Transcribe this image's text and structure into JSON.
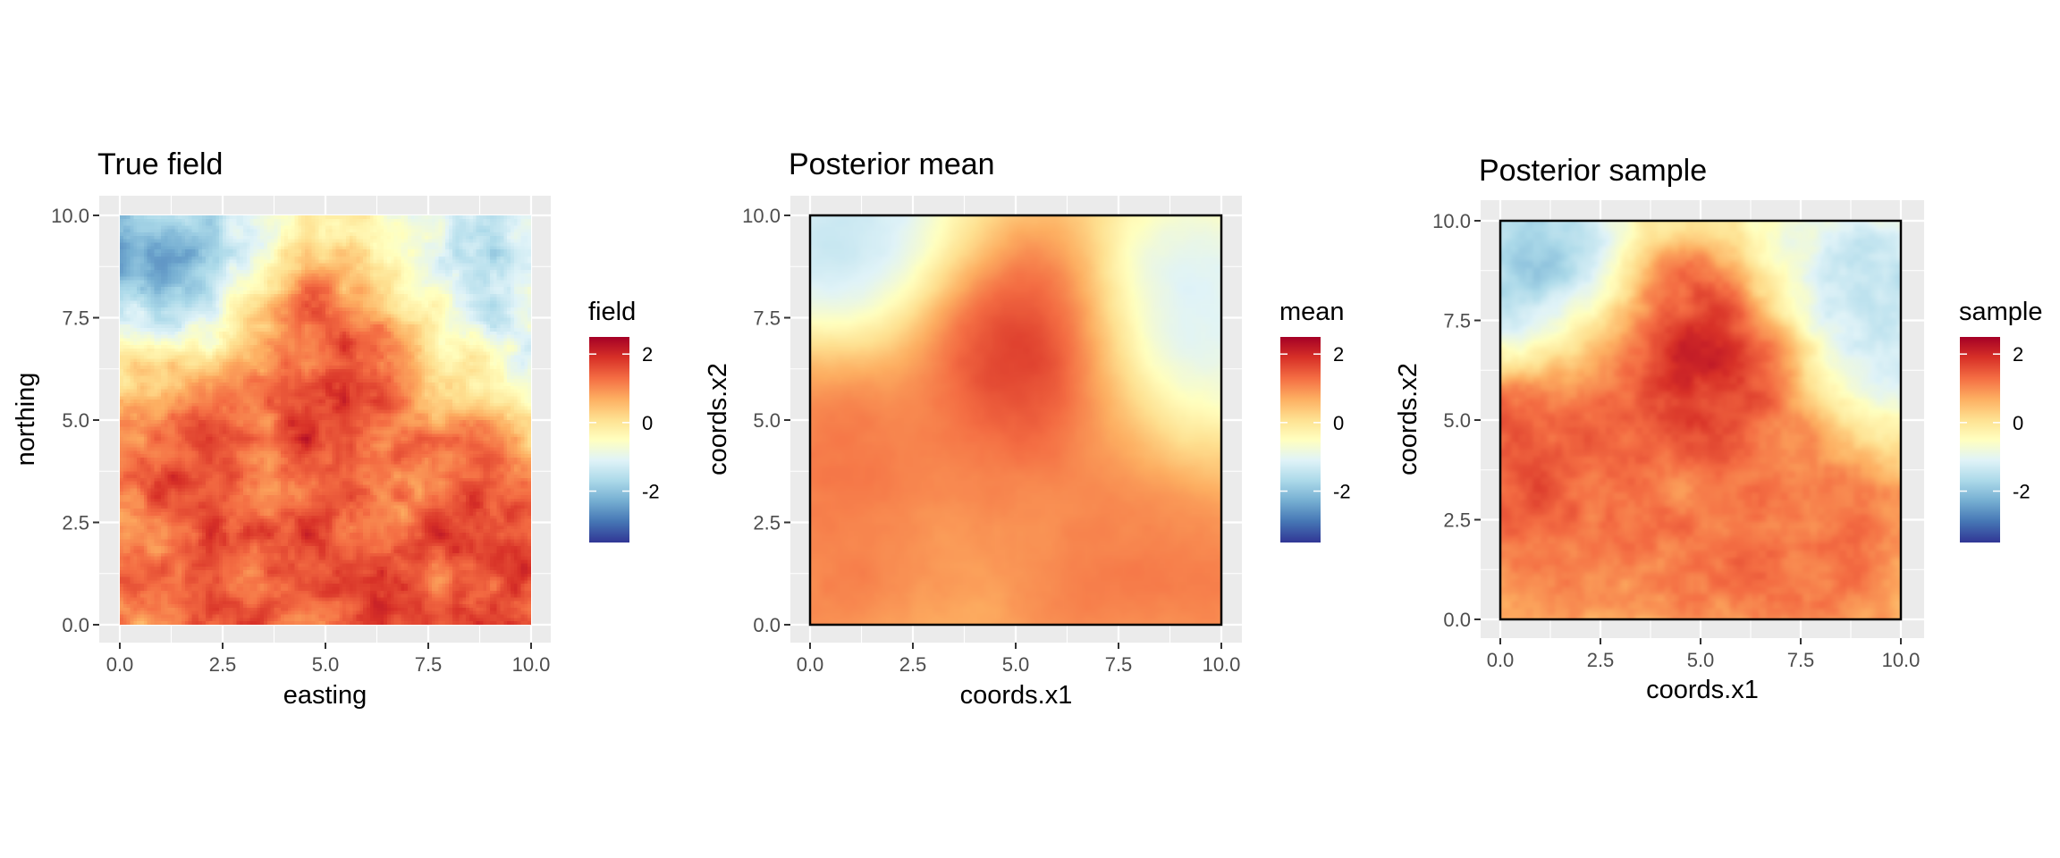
{
  "palette": [
    "#313695",
    "#4575b4",
    "#74add1",
    "#abd9e9",
    "#e0f3f8",
    "#ffffbf",
    "#fee090",
    "#fdae61",
    "#f46d43",
    "#d73027",
    "#a50026"
  ],
  "chart_data": [
    {
      "type": "heatmap",
      "title": "True field",
      "xlabel": "easting",
      "ylabel": "northing",
      "xlim": [
        0,
        10
      ],
      "ylim": [
        0,
        10
      ],
      "xticks": [
        "0.0",
        "2.5",
        "5.0",
        "7.5",
        "10.0"
      ],
      "yticks": [
        "0.0",
        "2.5",
        "5.0",
        "7.5",
        "10.0"
      ],
      "legend_title": "field",
      "legend_ticks": [
        "2",
        "0",
        "-2"
      ],
      "color_range": [
        -3.5,
        2.5
      ],
      "border": false,
      "texture": "rough",
      "blobs": [
        {
          "x": 5.0,
          "y": 7.4,
          "v": 2.2
        },
        {
          "x": 5.6,
          "y": 6.2,
          "v": 1.9
        },
        {
          "x": 1.1,
          "y": 4.9,
          "v": 1.8
        },
        {
          "x": 8.4,
          "y": 3.8,
          "v": 1.9
        },
        {
          "x": 4.6,
          "y": 3.2,
          "v": 1.5
        },
        {
          "x": 0.8,
          "y": 1.8,
          "v": 1.6
        },
        {
          "x": 6.2,
          "y": 0.8,
          "v": 1.6
        },
        {
          "x": 9.7,
          "y": 1.2,
          "v": 1.8
        },
        {
          "x": 3.8,
          "y": 0.3,
          "v": 1.5
        },
        {
          "x": 1.0,
          "y": 9.5,
          "v": -2.9
        },
        {
          "x": 0.3,
          "y": 8.2,
          "v": -2.4
        },
        {
          "x": 3.5,
          "y": 9.9,
          "v": -1.6
        },
        {
          "x": 9.0,
          "y": 9.0,
          "v": -2.0
        },
        {
          "x": 9.6,
          "y": 6.6,
          "v": -1.6
        },
        {
          "x": 7.6,
          "y": 8.0,
          "v": -1.0
        }
      ]
    },
    {
      "type": "heatmap",
      "title": "Posterior mean",
      "xlabel": "coords.x1",
      "ylabel": "coords.x2",
      "xlim": [
        0,
        10
      ],
      "ylim": [
        0,
        10
      ],
      "xticks": [
        "0.0",
        "2.5",
        "5.0",
        "7.5",
        "10.0"
      ],
      "yticks": [
        "0.0",
        "2.5",
        "5.0",
        "7.5",
        "10.0"
      ],
      "legend_title": "mean",
      "legend_ticks": [
        "2",
        "0",
        "-2"
      ],
      "color_range": [
        -3.5,
        2.5
      ],
      "border": true,
      "texture": "smooth",
      "blobs": [
        {
          "x": 4.8,
          "y": 7.5,
          "v": 1.9
        },
        {
          "x": 5.4,
          "y": 6.0,
          "v": 1.9
        },
        {
          "x": 0.7,
          "y": 4.5,
          "v": 1.5
        },
        {
          "x": 8.0,
          "y": 3.5,
          "v": 1.2
        },
        {
          "x": 4.2,
          "y": 3.2,
          "v": 1.0
        },
        {
          "x": 0.8,
          "y": 1.0,
          "v": 1.3
        },
        {
          "x": 6.5,
          "y": 0.6,
          "v": 1.2
        },
        {
          "x": 9.6,
          "y": 1.0,
          "v": 1.3
        },
        {
          "x": 0.6,
          "y": 9.3,
          "v": -2.2
        },
        {
          "x": 2.2,
          "y": 9.8,
          "v": -1.3
        },
        {
          "x": 9.3,
          "y": 8.4,
          "v": -1.8
        },
        {
          "x": 9.2,
          "y": 6.0,
          "v": -1.4
        }
      ]
    },
    {
      "type": "heatmap",
      "title": "Posterior sample",
      "xlabel": "coords.x1",
      "ylabel": "coords.x2",
      "xlim": [
        0,
        10
      ],
      "ylim": [
        0,
        10
      ],
      "xticks": [
        "0.0",
        "2.5",
        "5.0",
        "7.5",
        "10.0"
      ],
      "yticks": [
        "0.0",
        "2.5",
        "5.0",
        "7.5",
        "10.0"
      ],
      "legend_title": "sample",
      "legend_ticks": [
        "2",
        "0",
        "-2"
      ],
      "color_range": [
        -3.5,
        2.5
      ],
      "border": true,
      "texture": "medium",
      "blobs": [
        {
          "x": 5.1,
          "y": 7.3,
          "v": 2.2
        },
        {
          "x": 5.3,
          "y": 5.8,
          "v": 2.1
        },
        {
          "x": 0.4,
          "y": 4.0,
          "v": 2.0
        },
        {
          "x": 1.4,
          "y": 4.8,
          "v": 1.4
        },
        {
          "x": 8.4,
          "y": 3.6,
          "v": 1.2
        },
        {
          "x": 5.2,
          "y": 1.4,
          "v": 1.4
        },
        {
          "x": 1.0,
          "y": 0.8,
          "v": 1.3
        },
        {
          "x": 8.2,
          "y": 1.4,
          "v": 1.4
        },
        {
          "x": 1.2,
          "y": 9.5,
          "v": -2.4
        },
        {
          "x": 0.3,
          "y": 8.3,
          "v": -2.0
        },
        {
          "x": 9.3,
          "y": 8.6,
          "v": -2.3
        },
        {
          "x": 9.4,
          "y": 6.4,
          "v": -1.8
        },
        {
          "x": 7.5,
          "y": 9.7,
          "v": -1.0
        }
      ]
    }
  ]
}
